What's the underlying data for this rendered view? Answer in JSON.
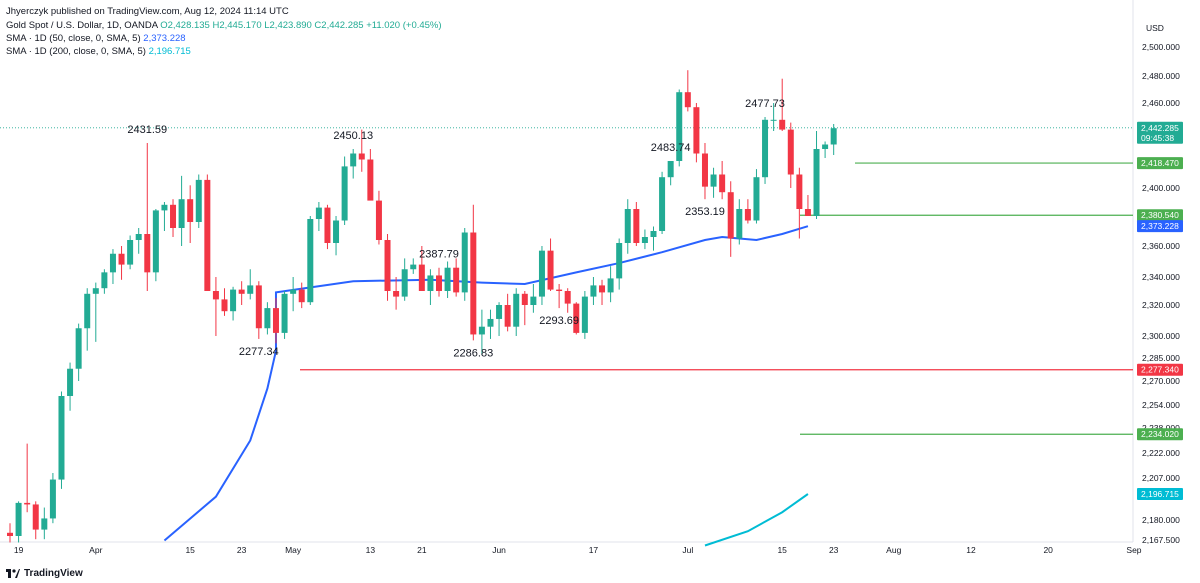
{
  "header": {
    "published": "Jhyerczyk published on TradingView.com, Aug 12, 2024 11:14 UTC",
    "instrument": "Gold Spot / U.S. Dollar, 1D, OANDA",
    "ohlc": "O2,428.135 H2,445.170 L2,423.890 C2,442.285 +11.020 (+0.45%)",
    "sma50_label": "SMA · 1D (50, close, 0, SMA, 5)",
    "sma50_value": "2,373.228",
    "sma200_label": "SMA · 1D (200, close, 0, SMA, 5)",
    "sma200_value": "2,196.715"
  },
  "footer": {
    "brand": "TradingView",
    "logo": "tradingview-logo-icon"
  },
  "colors": {
    "up": "#22ab94",
    "down": "#f23645",
    "sma50": "#2962ff",
    "sma200": "#00bcd4",
    "support": "#4caf50",
    "resistance": "#f23645"
  },
  "chart_data": {
    "type": "candlestick",
    "currency": "USD",
    "x_tick_labels": [
      "19",
      "Apr",
      "15",
      "23",
      "May",
      "13",
      "21",
      "Jun",
      "17",
      "Jul",
      "15",
      "23",
      "Aug",
      "12",
      "20",
      "Sep"
    ],
    "y_tick_labels": [
      "2,500.000",
      "2,480.000",
      "2,460.000",
      "2,440.000",
      "2,420.000",
      "2,400.000",
      "2,380.000",
      "2,360.000",
      "2,340.000",
      "2,320.000",
      "2,300.000",
      "2,285.000",
      "2,270.000",
      "2,254.000",
      "2,238.000",
      "2,222.000",
      "2,207.000",
      "2,180.000",
      "2,167.500"
    ],
    "y_tick_values": [
      2500,
      2480,
      2460,
      2440,
      2420,
      2400,
      2380,
      2360,
      2340,
      2320,
      2300,
      2285,
      2270,
      2254,
      2238,
      2222,
      2207,
      2180,
      2167.5
    ],
    "ylim": [
      2167.5,
      2510
    ],
    "candles": [
      [
        2172,
        2178,
        2165,
        2170
      ],
      [
        2170,
        2192,
        2165,
        2191
      ],
      [
        2191,
        2228,
        2185,
        2190
      ],
      [
        2190,
        2192,
        2168,
        2174
      ],
      [
        2174,
        2188,
        2168,
        2181
      ],
      [
        2181,
        2210,
        2178,
        2206
      ],
      [
        2206,
        2263,
        2200,
        2260
      ],
      [
        2260,
        2282,
        2250,
        2278
      ],
      [
        2278,
        2308,
        2270,
        2305
      ],
      [
        2305,
        2332,
        2290,
        2328
      ],
      [
        2328,
        2336,
        2296,
        2332
      ],
      [
        2332,
        2345,
        2328,
        2343
      ],
      [
        2343,
        2358,
        2335,
        2355
      ],
      [
        2355,
        2360,
        2338,
        2348
      ],
      [
        2348,
        2367,
        2345,
        2364
      ],
      [
        2364,
        2372,
        2355,
        2368
      ],
      [
        2368,
        2432,
        2330,
        2343
      ],
      [
        2343,
        2385,
        2337,
        2384
      ],
      [
        2384,
        2390,
        2370,
        2388
      ],
      [
        2388,
        2392,
        2366,
        2372
      ],
      [
        2372,
        2409,
        2360,
        2392
      ],
      [
        2392,
        2402,
        2362,
        2376
      ],
      [
        2376,
        2410,
        2372,
        2406
      ],
      [
        2406,
        2410,
        2330,
        2330
      ],
      [
        2330,
        2340,
        2300,
        2324
      ],
      [
        2324,
        2332,
        2313,
        2316
      ],
      [
        2316,
        2333,
        2310,
        2331
      ],
      [
        2331,
        2337,
        2320,
        2328
      ],
      [
        2328,
        2345,
        2324,
        2334
      ],
      [
        2334,
        2337,
        2298,
        2305
      ],
      [
        2305,
        2322,
        2301,
        2318
      ],
      [
        2318,
        2325,
        2295,
        2302
      ],
      [
        2302,
        2330,
        2298,
        2328
      ],
      [
        2328,
        2340,
        2316,
        2331
      ],
      [
        2331,
        2336,
        2318,
        2322
      ],
      [
        2322,
        2380,
        2320,
        2378
      ],
      [
        2378,
        2390,
        2370,
        2386
      ],
      [
        2386,
        2388,
        2358,
        2362
      ],
      [
        2362,
        2380,
        2354,
        2377
      ],
      [
        2377,
        2423,
        2374,
        2416
      ],
      [
        2416,
        2428,
        2407,
        2425
      ],
      [
        2425,
        2441,
        2412,
        2421
      ],
      [
        2421,
        2428,
        2392,
        2391
      ],
      [
        2391,
        2398,
        2361,
        2364
      ],
      [
        2364,
        2368,
        2323,
        2330
      ],
      [
        2330,
        2340,
        2317,
        2326
      ],
      [
        2326,
        2352,
        2323,
        2345
      ],
      [
        2345,
        2352,
        2342,
        2348
      ],
      [
        2348,
        2360,
        2330,
        2330
      ],
      [
        2330,
        2345,
        2320,
        2341
      ],
      [
        2341,
        2346,
        2326,
        2330
      ],
      [
        2330,
        2350,
        2325,
        2346
      ],
      [
        2346,
        2352,
        2326,
        2329
      ],
      [
        2329,
        2372,
        2323,
        2369
      ],
      [
        2369,
        2388,
        2297,
        2301
      ],
      [
        2301,
        2317,
        2287,
        2306
      ],
      [
        2306,
        2317,
        2298,
        2311
      ],
      [
        2311,
        2322,
        2300,
        2320
      ],
      [
        2320,
        2328,
        2303,
        2306
      ],
      [
        2306,
        2332,
        2300,
        2328
      ],
      [
        2328,
        2330,
        2307,
        2320
      ],
      [
        2320,
        2335,
        2315,
        2326
      ],
      [
        2326,
        2360,
        2320,
        2357
      ],
      [
        2357,
        2365,
        2330,
        2331
      ],
      [
        2331,
        2335,
        2318,
        2330
      ],
      [
        2330,
        2332,
        2315,
        2321
      ],
      [
        2321,
        2322,
        2301,
        2302
      ],
      [
        2302,
        2330,
        2298,
        2326
      ],
      [
        2326,
        2340,
        2320,
        2334
      ],
      [
        2334,
        2338,
        2320,
        2329
      ],
      [
        2329,
        2347,
        2322,
        2339
      ],
      [
        2339,
        2365,
        2331,
        2362
      ],
      [
        2362,
        2392,
        2355,
        2385
      ],
      [
        2385,
        2390,
        2360,
        2362
      ],
      [
        2362,
        2371,
        2358,
        2366
      ],
      [
        2366,
        2373,
        2357,
        2370
      ],
      [
        2370,
        2412,
        2368,
        2408
      ],
      [
        2408,
        2420,
        2402,
        2420
      ],
      [
        2420,
        2470,
        2416,
        2468
      ],
      [
        2468,
        2484,
        2454,
        2457
      ],
      [
        2457,
        2460,
        2419,
        2425
      ],
      [
        2425,
        2432,
        2392,
        2401
      ],
      [
        2401,
        2415,
        2393,
        2410
      ],
      [
        2410,
        2420,
        2392,
        2397
      ],
      [
        2397,
        2405,
        2353,
        2365
      ],
      [
        2365,
        2392,
        2361,
        2385
      ],
      [
        2385,
        2392,
        2375,
        2377
      ],
      [
        2377,
        2414,
        2375,
        2408
      ],
      [
        2408,
        2450,
        2403,
        2448
      ],
      [
        2448,
        2460,
        2440,
        2448
      ],
      [
        2448,
        2478,
        2440,
        2441
      ],
      [
        2441,
        2446,
        2400,
        2410
      ],
      [
        2410,
        2415,
        2365,
        2385
      ],
      [
        2385,
        2395,
        2380,
        2380
      ],
      [
        2380,
        2440,
        2378,
        2428
      ],
      [
        2428,
        2433,
        2422,
        2431
      ],
      [
        2431,
        2445,
        2424,
        2442
      ]
    ],
    "sma50": [
      [
        31,
        2329
      ],
      [
        40,
        2337
      ],
      [
        49,
        2338
      ],
      [
        55,
        2336
      ],
      [
        60,
        2335
      ],
      [
        66,
        2343
      ],
      [
        71,
        2349
      ],
      [
        76,
        2356
      ],
      [
        81,
        2364
      ],
      [
        83,
        2366
      ],
      [
        87,
        2364
      ],
      [
        90,
        2368
      ],
      [
        93,
        2373.228
      ]
    ],
    "sma200": [
      [
        81,
        2162
      ],
      [
        86,
        2173
      ],
      [
        90,
        2185
      ],
      [
        93,
        2196.715
      ]
    ],
    "annotations": [
      {
        "text": "2431.59",
        "i": 16
      },
      {
        "text": "2277.34",
        "i": 29
      },
      {
        "text": "2450.13",
        "i": 40
      },
      {
        "text": "2387.79",
        "i": 50
      },
      {
        "text": "2286.83",
        "i": 54
      },
      {
        "text": "2293.69",
        "i": 64
      },
      {
        "text": "2483.74",
        "i": 77
      },
      {
        "text": "2353.19",
        "i": 81
      },
      {
        "text": "2477.73",
        "i": 88
      }
    ],
    "levels": [
      {
        "value": 2418.47,
        "label": "2,418.470",
        "color": "#4caf50",
        "from": 82
      },
      {
        "value": 2380.54,
        "label": "2,380.540",
        "color": "#4caf50",
        "from": 76
      },
      {
        "value": 2277.34,
        "label": "2,277.340",
        "color": "#f23645",
        "from": 0
      },
      {
        "value": 2234.02,
        "label": "2,234.020",
        "color": "#4caf50",
        "from": 76
      }
    ],
    "price_tags": [
      {
        "value": 2442.285,
        "label": "2,442.285",
        "sub": "09:45:38",
        "color": "#22ab94"
      },
      {
        "value": 2373.228,
        "label": "2,373.228",
        "color": "#2962ff"
      },
      {
        "value": 2196.715,
        "label": "2,196.715",
        "color": "#00bcd4"
      }
    ],
    "last_price": 2442.285
  }
}
